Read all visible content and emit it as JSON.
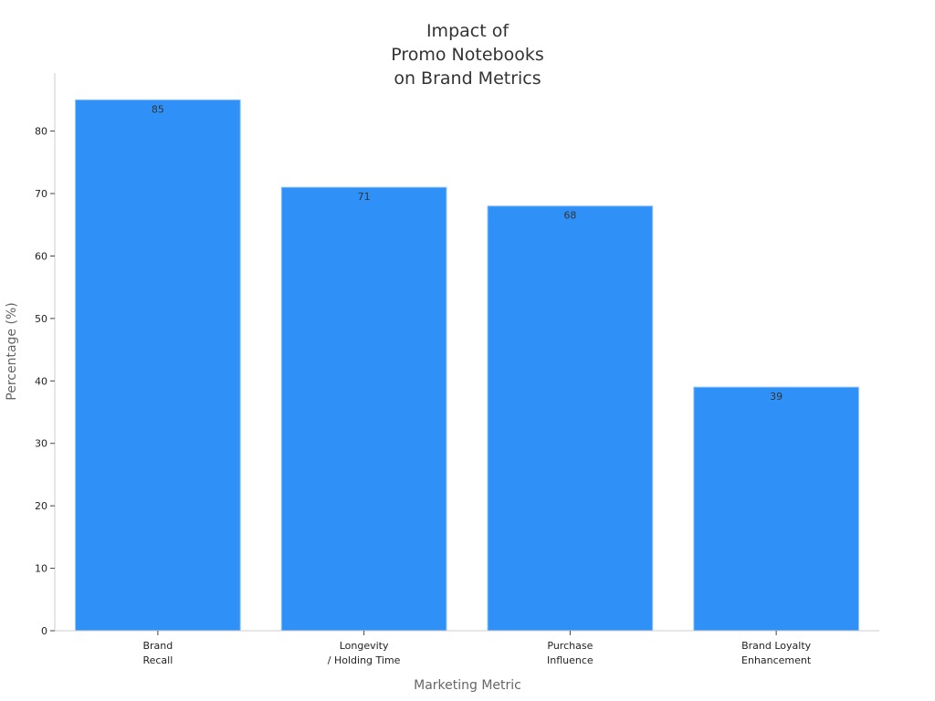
{
  "chart_data": {
    "type": "bar",
    "title": [
      "Impact of",
      "Promo Notebooks",
      "on Brand Metrics"
    ],
    "xlabel": "Marketing Metric",
    "ylabel": "Percentage (%)",
    "categories": [
      [
        "Brand",
        "Recall"
      ],
      [
        "Longevity",
        "/ Holding Time"
      ],
      [
        "Purchase",
        "Influence"
      ],
      [
        "Brand Loyalty",
        "Enhancement"
      ]
    ],
    "values": [
      85,
      71,
      68,
      39
    ],
    "ylim": [
      0,
      89.3
    ],
    "yticks": [
      0,
      10,
      20,
      30,
      40,
      50,
      60,
      70,
      80
    ],
    "grid": false,
    "bar_color": "#2f91f8",
    "bar_edge_color": "#8cc3fb"
  }
}
